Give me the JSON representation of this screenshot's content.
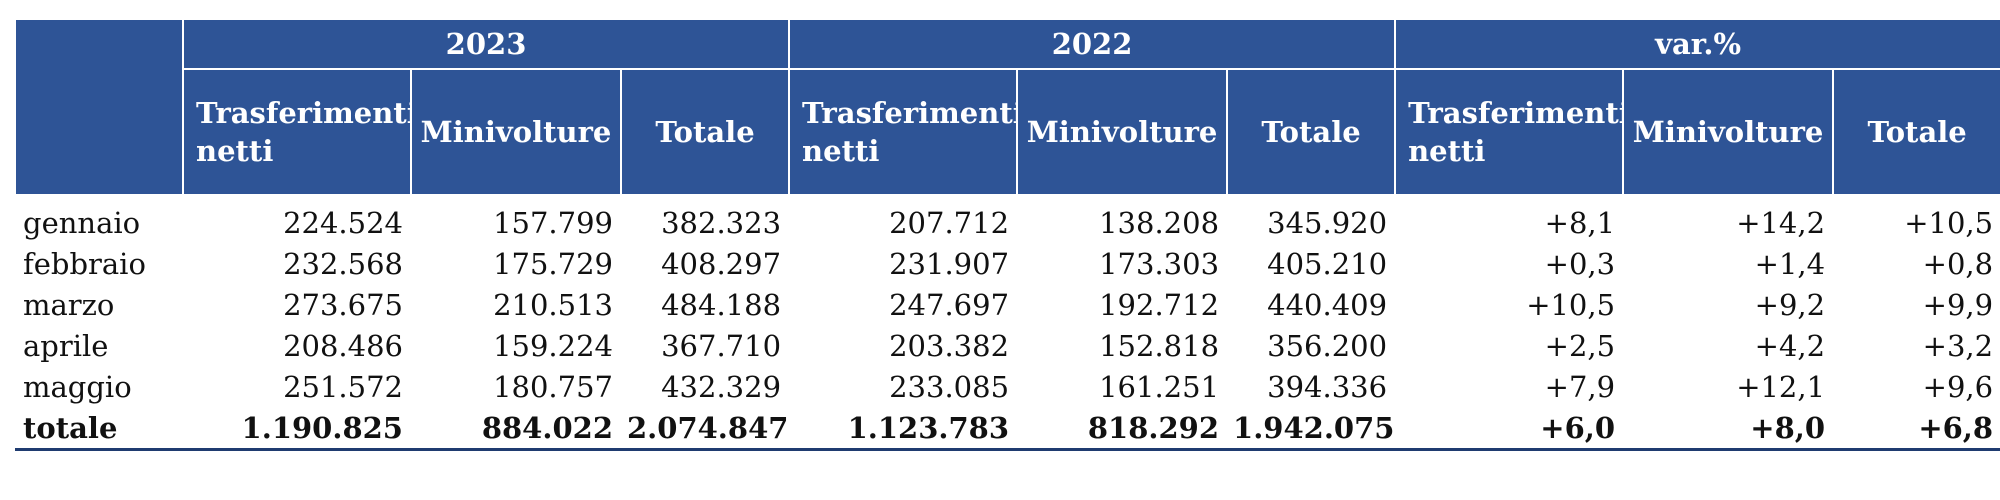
{
  "table": {
    "groups": [
      "2023",
      "2022",
      "var.%"
    ],
    "subheaders": [
      "Trasferimenti netti",
      "Minivolture",
      "Totale",
      "Trasferimenti netti",
      "Minivolture",
      "Totale",
      "Trasferimenti netti",
      "Minivolture",
      "Totale"
    ],
    "rows": [
      {
        "label": "gennaio",
        "values": [
          "224.524",
          "157.799",
          "382.323",
          "207.712",
          "138.208",
          "345.920",
          "+8,1",
          "+14,2",
          "+10,5"
        ]
      },
      {
        "label": "febbraio",
        "values": [
          "232.568",
          "175.729",
          "408.297",
          "231.907",
          "173.303",
          "405.210",
          "+0,3",
          "+1,4",
          "+0,8"
        ]
      },
      {
        "label": "marzo",
        "values": [
          "273.675",
          "210.513",
          "484.188",
          "247.697",
          "192.712",
          "440.409",
          "+10,5",
          "+9,2",
          "+9,9"
        ]
      },
      {
        "label": "aprile",
        "values": [
          "208.486",
          "159.224",
          "367.710",
          "203.382",
          "152.818",
          "356.200",
          "+2,5",
          "+4,2",
          "+3,2"
        ]
      },
      {
        "label": "maggio",
        "values": [
          "251.572",
          "180.757",
          "432.329",
          "233.085",
          "161.251",
          "394.336",
          "+7,9",
          "+12,1",
          "+9,6"
        ]
      },
      {
        "label": "totale",
        "values": [
          "1.190.825",
          "884.022",
          "2.074.847",
          "1.123.783",
          "818.292",
          "1.942.075",
          "+6,0",
          "+8,0",
          "+6,8"
        ]
      }
    ]
  }
}
